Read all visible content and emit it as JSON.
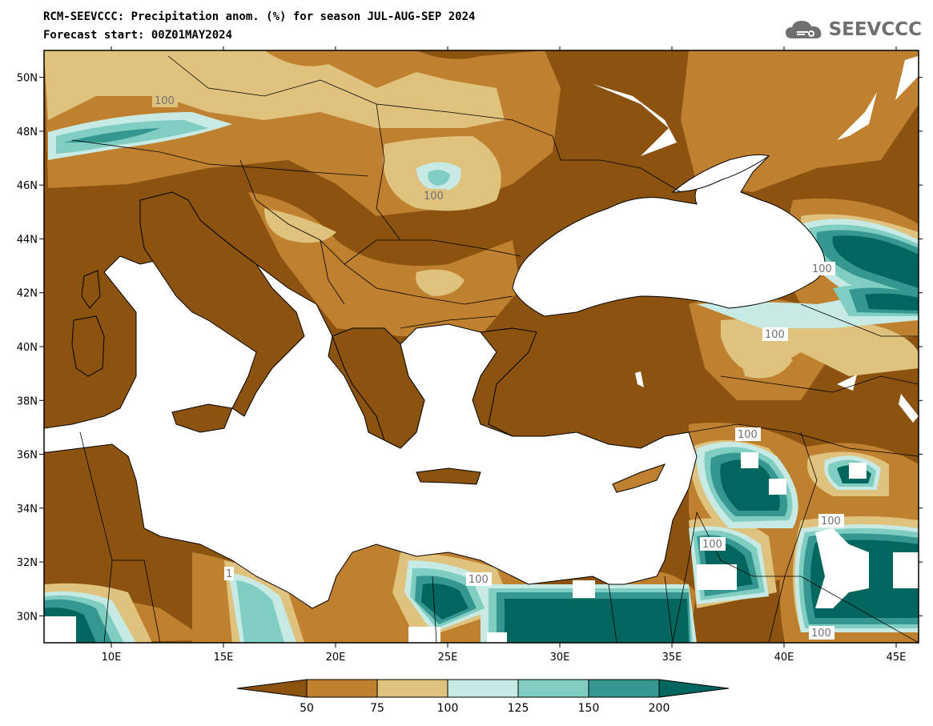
{
  "title_line1": "RCM-SEEVCCC: Precipitation anom. (%) for season JUL-AUG-SEP 2024",
  "title_line2": "Forecast start: 00Z01MAY2024",
  "logo_text": "SEEVCCC",
  "map": {
    "lon_range": [
      7,
      46
    ],
    "lat_range": [
      29,
      51
    ],
    "lon_ticks": [
      "10E",
      "15E",
      "20E",
      "25E",
      "30E",
      "35E",
      "40E",
      "45E"
    ],
    "lat_ticks": [
      "30N",
      "32N",
      "34N",
      "36N",
      "38N",
      "40N",
      "42N",
      "44N",
      "46N",
      "48N",
      "50N"
    ],
    "contour_labels": [
      "100",
      "100",
      "100",
      "100",
      "100",
      "100",
      "100",
      "100",
      "100",
      "100",
      "1"
    ]
  },
  "colorbar": {
    "labels": [
      "50",
      "75",
      "100",
      "125",
      "150",
      "200"
    ],
    "colors": [
      "#8c5210",
      "#bf802f",
      "#dfc27d",
      "#c7eae5",
      "#80cdc1",
      "#35978f",
      "#01665e"
    ]
  }
}
